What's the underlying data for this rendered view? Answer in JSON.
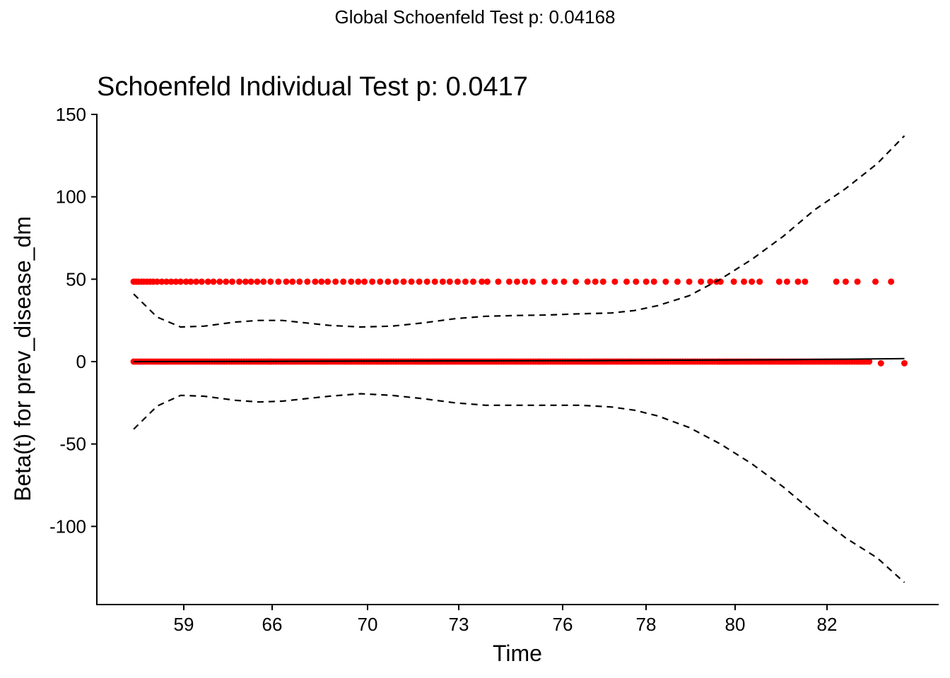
{
  "chart_data": {
    "type": "scatter",
    "suptitle": "Global Schoenfeld Test p: 0.04168",
    "title": "Schoenfeld Individual Test p: 0.0417",
    "xlabel": "Time",
    "ylabel": "Beta(t) for prev_disease_dm",
    "x_tick_labels": [
      "59",
      "66",
      "70",
      "73",
      "76",
      "78",
      "80",
      "82"
    ],
    "y_ticks": [
      150,
      100,
      50,
      0,
      -50,
      -100
    ],
    "ylim": [
      -147,
      150
    ],
    "xlim": [
      0,
      1
    ],
    "point_color": "#ff0000",
    "line_color": "#000000",
    "axis_color": "#000000",
    "grid": false,
    "legend": "none",
    "series": [
      {
        "role": "residuals-upper",
        "y": 48.5,
        "x": [
          0.01,
          0.013,
          0.016,
          0.02,
          0.023,
          0.027,
          0.031,
          0.035,
          0.04,
          0.046,
          0.052,
          0.058,
          0.064,
          0.07,
          0.077,
          0.083,
          0.09,
          0.097,
          0.105,
          0.112,
          0.12,
          0.128,
          0.136,
          0.145,
          0.153,
          0.16,
          0.168,
          0.176,
          0.185,
          0.195,
          0.205,
          0.213,
          0.222,
          0.232,
          0.242,
          0.25,
          0.258,
          0.268,
          0.278,
          0.288,
          0.297,
          0.305,
          0.315,
          0.325,
          0.335,
          0.345,
          0.355,
          0.365,
          0.375,
          0.385,
          0.395,
          0.405,
          0.414,
          0.424,
          0.434,
          0.444,
          0.455,
          0.462,
          0.476,
          0.49,
          0.5,
          0.51,
          0.52,
          0.535,
          0.548,
          0.56,
          0.575,
          0.59,
          0.6,
          0.61,
          0.625,
          0.64,
          0.652,
          0.665,
          0.675,
          0.69,
          0.705,
          0.72,
          0.735,
          0.747,
          0.755,
          0.76,
          0.777,
          0.79,
          0.8,
          0.81,
          0.835,
          0.845,
          0.859,
          0.868,
          0.908,
          0.92,
          0.935,
          0.958,
          0.978
        ]
      },
      {
        "role": "residuals-lower",
        "y": 0,
        "x_range": [
          0.01,
          0.95
        ],
        "extra_points": [
          {
            "x": 0.965,
            "y": -1
          },
          {
            "x": 0.995,
            "y": -1
          }
        ]
      },
      {
        "role": "fit",
        "points": [
          [
            0.01,
            0
          ],
          [
            0.3,
            0.3
          ],
          [
            0.6,
            0.6
          ],
          [
            0.85,
            1.2
          ],
          [
            0.995,
            1.8
          ]
        ]
      },
      {
        "role": "ci-upper",
        "points": [
          [
            0.01,
            41
          ],
          [
            0.04,
            27
          ],
          [
            0.07,
            21
          ],
          [
            0.1,
            21.5
          ],
          [
            0.14,
            24
          ],
          [
            0.17,
            25
          ],
          [
            0.2,
            25
          ],
          [
            0.23,
            23.5
          ],
          [
            0.26,
            22
          ],
          [
            0.3,
            21
          ],
          [
            0.34,
            21.5
          ],
          [
            0.38,
            23.5
          ],
          [
            0.42,
            26
          ],
          [
            0.46,
            27.5
          ],
          [
            0.5,
            28
          ],
          [
            0.54,
            28.3
          ],
          [
            0.58,
            29
          ],
          [
            0.62,
            29.5
          ],
          [
            0.65,
            31
          ],
          [
            0.68,
            34
          ],
          [
            0.72,
            40
          ],
          [
            0.76,
            50
          ],
          [
            0.8,
            62
          ],
          [
            0.84,
            76
          ],
          [
            0.88,
            92
          ],
          [
            0.92,
            105
          ],
          [
            0.96,
            120
          ],
          [
            0.995,
            137
          ]
        ]
      },
      {
        "role": "ci-lower",
        "points": [
          [
            0.01,
            -41
          ],
          [
            0.04,
            -27
          ],
          [
            0.07,
            -20.5
          ],
          [
            0.1,
            -21
          ],
          [
            0.14,
            -23.5
          ],
          [
            0.17,
            -24.5
          ],
          [
            0.2,
            -24
          ],
          [
            0.23,
            -22.5
          ],
          [
            0.26,
            -21
          ],
          [
            0.3,
            -19.5
          ],
          [
            0.34,
            -20.5
          ],
          [
            0.38,
            -22.5
          ],
          [
            0.42,
            -25
          ],
          [
            0.46,
            -26.5
          ],
          [
            0.5,
            -26.5
          ],
          [
            0.54,
            -26.5
          ],
          [
            0.58,
            -26.5
          ],
          [
            0.62,
            -27.5
          ],
          [
            0.65,
            -29.5
          ],
          [
            0.68,
            -33
          ],
          [
            0.72,
            -40
          ],
          [
            0.76,
            -50
          ],
          [
            0.8,
            -62
          ],
          [
            0.84,
            -76
          ],
          [
            0.88,
            -92
          ],
          [
            0.92,
            -107
          ],
          [
            0.96,
            -119
          ],
          [
            0.995,
            -134
          ]
        ]
      }
    ]
  }
}
